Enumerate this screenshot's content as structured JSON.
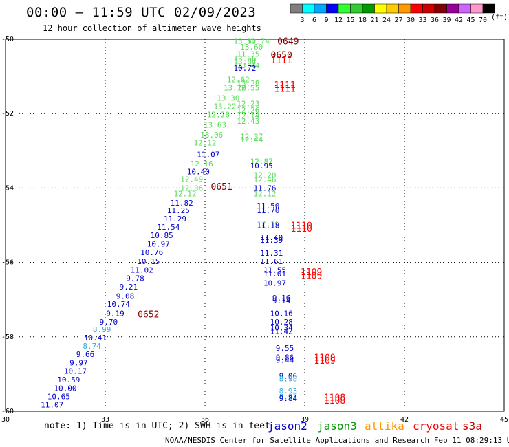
{
  "header": {
    "title": "00:00 – 11:59 UTC 02/09/2023",
    "subtitle": "12 hour collection of altimeter wave heights"
  },
  "colorbar": {
    "labels": [
      "3",
      "6",
      "9",
      "12",
      "15",
      "18",
      "21",
      "24",
      "27",
      "30",
      "33",
      "36",
      "39",
      "42",
      "45",
      "70"
    ],
    "colors": [
      "#7f7f7f",
      "#00ffff",
      "#00a8ff",
      "#0000ff",
      "#33ff33",
      "#33cc33",
      "#009900",
      "#ffff00",
      "#ffcc00",
      "#ff9900",
      "#ff0000",
      "#cc0000",
      "#800000",
      "#990099",
      "#cc66ff",
      "#ff99cc",
      "#000000"
    ],
    "unit": "(ft)"
  },
  "footer": {
    "note": "note: 1) Time is in UTC; 2) SWH is in feet",
    "satellites": [
      {
        "name": "jason2",
        "color": "#0000cc"
      },
      {
        "name": "jason3",
        "color": "#009900"
      },
      {
        "name": "altika",
        "color": "#ff9900"
      },
      {
        "name": "cryosat",
        "color": "#ff0000"
      },
      {
        "name": "s3a",
        "color": "#cc0000"
      }
    ],
    "credit": "NOAA/NESDIS Center for Satellite Applications and Research    Feb 11 08:29:13 UTC 2023"
  },
  "chart_data": {
    "type": "scatter",
    "title": "00:00 – 11:59 UTC 02/09/2023",
    "subtitle": "12 hour collection of altimeter wave heights",
    "xlim": [
      30,
      45
    ],
    "ylim": [
      -60,
      -50
    ],
    "xticks": [
      30,
      33,
      36,
      39,
      42,
      45
    ],
    "yticks": [
      -50,
      -52,
      -54,
      -56,
      -58,
      -60
    ],
    "grid": true,
    "points": [
      {
        "x": 37.2,
        "y": -50.05,
        "label": "13.82",
        "color": "#55dd55"
      },
      {
        "x": 37.6,
        "y": -50.05,
        "label": "10.74",
        "color": "#55dd55"
      },
      {
        "x": 37.4,
        "y": -50.2,
        "label": "13.60",
        "color": "#55dd55"
      },
      {
        "x": 37.3,
        "y": -50.4,
        "label": "11.35",
        "color": "#55dd55"
      },
      {
        "x": 37.2,
        "y": -50.52,
        "label": "13.66",
        "color": "#55dd55"
      },
      {
        "x": 37.2,
        "y": -50.6,
        "label": "13.64",
        "color": "#55dd55"
      },
      {
        "x": 37.3,
        "y": -50.7,
        "label": "13.44",
        "color": "#55dd55"
      },
      {
        "x": 37.2,
        "y": -50.78,
        "label": "10.72",
        "color": "#0000cc"
      },
      {
        "x": 37.0,
        "y": -51.08,
        "label": "12.62",
        "color": "#55dd55"
      },
      {
        "x": 37.3,
        "y": -51.18,
        "label": "13.38",
        "color": "#55dd55"
      },
      {
        "x": 36.9,
        "y": -51.3,
        "label": "13.70",
        "color": "#55dd55"
      },
      {
        "x": 37.3,
        "y": -51.3,
        "label": "12.55",
        "color": "#55dd55"
      },
      {
        "x": 36.7,
        "y": -51.58,
        "label": "13.30",
        "color": "#55dd55"
      },
      {
        "x": 37.3,
        "y": -51.73,
        "label": "12.23",
        "color": "#55dd55"
      },
      {
        "x": 36.6,
        "y": -51.8,
        "label": "13.22",
        "color": "#55dd55"
      },
      {
        "x": 37.3,
        "y": -51.9,
        "label": "12.26",
        "color": "#55dd55"
      },
      {
        "x": 36.4,
        "y": -52.02,
        "label": "12.28",
        "color": "#55dd55"
      },
      {
        "x": 37.3,
        "y": -52.05,
        "label": "12.14",
        "color": "#55dd55"
      },
      {
        "x": 37.3,
        "y": -52.2,
        "label": "12.43",
        "color": "#55dd55"
      },
      {
        "x": 36.3,
        "y": -52.3,
        "label": "13.63",
        "color": "#55dd55"
      },
      {
        "x": 36.2,
        "y": -52.57,
        "label": "13.06",
        "color": "#55dd55"
      },
      {
        "x": 37.4,
        "y": -52.62,
        "label": "12.37",
        "color": "#55dd55"
      },
      {
        "x": 37.4,
        "y": -52.7,
        "label": "12.44",
        "color": "#55dd55"
      },
      {
        "x": 36.0,
        "y": -52.78,
        "label": "12.12",
        "color": "#55dd55"
      },
      {
        "x": 36.1,
        "y": -53.1,
        "label": "11.07",
        "color": "#0000cc"
      },
      {
        "x": 37.7,
        "y": -53.28,
        "label": "12.87",
        "color": "#55dd55"
      },
      {
        "x": 35.9,
        "y": -53.35,
        "label": "12.16",
        "color": "#55dd55"
      },
      {
        "x": 37.7,
        "y": -53.4,
        "label": "10.95",
        "color": "#0000cc"
      },
      {
        "x": 35.8,
        "y": -53.56,
        "label": "10.40",
        "color": "#0000cc"
      },
      {
        "x": 37.8,
        "y": -53.65,
        "label": "12.20",
        "color": "#55dd55"
      },
      {
        "x": 35.6,
        "y": -53.76,
        "label": "12.49",
        "color": "#55dd55"
      },
      {
        "x": 37.8,
        "y": -53.77,
        "label": "12.46",
        "color": "#55dd55"
      },
      {
        "x": 35.6,
        "y": -54.0,
        "label": "12.36",
        "color": "#55dd55"
      },
      {
        "x": 37.8,
        "y": -54.0,
        "label": "11.76",
        "color": "#0000cc"
      },
      {
        "x": 35.4,
        "y": -54.15,
        "label": "12.12",
        "color": "#55dd55"
      },
      {
        "x": 37.8,
        "y": -54.15,
        "label": "12.12",
        "color": "#55dd55"
      },
      {
        "x": 35.3,
        "y": -54.4,
        "label": "11.82",
        "color": "#0000cc"
      },
      {
        "x": 37.9,
        "y": -54.47,
        "label": "11.50",
        "color": "#0000cc"
      },
      {
        "x": 35.2,
        "y": -54.6,
        "label": "11.25",
        "color": "#0000cc"
      },
      {
        "x": 37.9,
        "y": -54.6,
        "label": "11.70",
        "color": "#0000cc"
      },
      {
        "x": 35.1,
        "y": -54.82,
        "label": "11.29",
        "color": "#0000cc"
      },
      {
        "x": 37.9,
        "y": -54.95,
        "label": "12.16",
        "color": "#55dd55"
      },
      {
        "x": 37.9,
        "y": -55.0,
        "label": "11.18",
        "color": "#0000cc"
      },
      {
        "x": 34.9,
        "y": -55.05,
        "label": "11.54",
        "color": "#0000cc"
      },
      {
        "x": 34.7,
        "y": -55.27,
        "label": "10.85",
        "color": "#0000cc"
      },
      {
        "x": 38.0,
        "y": -55.32,
        "label": "11.40",
        "color": "#0000cc"
      },
      {
        "x": 38.0,
        "y": -55.4,
        "label": "11.39",
        "color": "#0000cc"
      },
      {
        "x": 34.6,
        "y": -55.5,
        "label": "10.97",
        "color": "#0000cc"
      },
      {
        "x": 34.4,
        "y": -55.73,
        "label": "10.76",
        "color": "#0000cc"
      },
      {
        "x": 38.0,
        "y": -55.75,
        "label": "11.31",
        "color": "#0000cc"
      },
      {
        "x": 34.3,
        "y": -55.97,
        "label": "10.15",
        "color": "#0000cc"
      },
      {
        "x": 38.0,
        "y": -55.97,
        "label": "11.61",
        "color": "#0000cc"
      },
      {
        "x": 34.1,
        "y": -56.2,
        "label": "11.02",
        "color": "#0000cc"
      },
      {
        "x": 38.1,
        "y": -56.2,
        "label": "11.55",
        "color": "#0000cc"
      },
      {
        "x": 38.1,
        "y": -56.3,
        "label": "11.01",
        "color": "#0000cc"
      },
      {
        "x": 33.9,
        "y": -56.42,
        "label": "9.78",
        "color": "#0000cc"
      },
      {
        "x": 38.1,
        "y": -56.55,
        "label": "10.97",
        "color": "#0000cc"
      },
      {
        "x": 33.7,
        "y": -56.65,
        "label": "9.21",
        "color": "#0000cc"
      },
      {
        "x": 38.3,
        "y": -56.95,
        "label": "9.16",
        "color": "#0000cc"
      },
      {
        "x": 38.3,
        "y": -57.02,
        "label": "9.14",
        "color": "#0000cc"
      },
      {
        "x": 33.6,
        "y": -56.9,
        "label": "9.08",
        "color": "#0000cc"
      },
      {
        "x": 33.4,
        "y": -57.12,
        "label": "10.74",
        "color": "#0000cc"
      },
      {
        "x": 33.3,
        "y": -57.37,
        "label": "9.19",
        "color": "#0000cc"
      },
      {
        "x": 38.3,
        "y": -57.37,
        "label": "10.16",
        "color": "#0000cc"
      },
      {
        "x": 33.1,
        "y": -57.6,
        "label": "9.70",
        "color": "#0000cc"
      },
      {
        "x": 38.3,
        "y": -57.6,
        "label": "10.28",
        "color": "#0000cc"
      },
      {
        "x": 38.3,
        "y": -57.75,
        "label": "10.34",
        "color": "#0000cc"
      },
      {
        "x": 38.3,
        "y": -57.85,
        "label": "11.42",
        "color": "#0000cc"
      },
      {
        "x": 32.9,
        "y": -57.8,
        "label": "8.99",
        "color": "#33aadd"
      },
      {
        "x": 32.7,
        "y": -58.02,
        "label": "10.41",
        "color": "#0000cc"
      },
      {
        "x": 32.6,
        "y": -58.24,
        "label": "8.74",
        "color": "#33aadd"
      },
      {
        "x": 38.4,
        "y": -58.3,
        "label": "9.55",
        "color": "#0000cc"
      },
      {
        "x": 32.4,
        "y": -58.47,
        "label": "9.66",
        "color": "#0000cc"
      },
      {
        "x": 38.4,
        "y": -58.55,
        "label": "9.86",
        "color": "#0000cc"
      },
      {
        "x": 38.4,
        "y": -58.62,
        "label": "9.44",
        "color": "#0000cc"
      },
      {
        "x": 32.2,
        "y": -58.7,
        "label": "9.97",
        "color": "#0000cc"
      },
      {
        "x": 32.1,
        "y": -58.92,
        "label": "10.17",
        "color": "#0000cc"
      },
      {
        "x": 38.5,
        "y": -59.05,
        "label": "9.06",
        "color": "#0000cc"
      },
      {
        "x": 38.5,
        "y": -59.12,
        "label": "8.98",
        "color": "#33aadd"
      },
      {
        "x": 31.9,
        "y": -59.15,
        "label": "10.59",
        "color": "#0000cc"
      },
      {
        "x": 31.8,
        "y": -59.38,
        "label": "10.00",
        "color": "#0000cc"
      },
      {
        "x": 38.5,
        "y": -59.45,
        "label": "8.93",
        "color": "#33aadd"
      },
      {
        "x": 31.6,
        "y": -59.6,
        "label": "10.65",
        "color": "#0000cc"
      },
      {
        "x": 38.5,
        "y": -59.6,
        "label": "8.97",
        "color": "#33aadd"
      },
      {
        "x": 38.5,
        "y": -59.65,
        "label": "9.84",
        "color": "#0000cc"
      },
      {
        "x": 31.4,
        "y": -59.82,
        "label": "11.07",
        "color": "#0000cc"
      }
    ],
    "time_labels": [
      {
        "x": 38.5,
        "y": -50.05,
        "label": "0649",
        "color": "#800000"
      },
      {
        "x": 38.3,
        "y": -50.42,
        "label": "0650",
        "color": "#800000"
      },
      {
        "x": 38.3,
        "y": -50.55,
        "label": "1111",
        "color": "#ff0000"
      },
      {
        "x": 38.4,
        "y": -51.22,
        "label": "1111",
        "color": "#ff0000"
      },
      {
        "x": 38.4,
        "y": -51.32,
        "label": "1111",
        "color": "#ff0000"
      },
      {
        "x": 36.5,
        "y": -53.96,
        "label": "0651",
        "color": "#800000"
      },
      {
        "x": 38.9,
        "y": -55.0,
        "label": "1110",
        "color": "#ff0000"
      },
      {
        "x": 38.9,
        "y": -55.08,
        "label": "1110",
        "color": "#ff0000"
      },
      {
        "x": 39.2,
        "y": -56.25,
        "label": "1109",
        "color": "#ff0000"
      },
      {
        "x": 39.2,
        "y": -56.35,
        "label": "1109",
        "color": "#ff0000"
      },
      {
        "x": 34.3,
        "y": -57.38,
        "label": "0652",
        "color": "#800000"
      },
      {
        "x": 39.6,
        "y": -58.55,
        "label": "1109",
        "color": "#ff0000"
      },
      {
        "x": 39.6,
        "y": -58.63,
        "label": "1109",
        "color": "#ff0000"
      },
      {
        "x": 39.9,
        "y": -59.62,
        "label": "1108",
        "color": "#ff0000"
      },
      {
        "x": 39.9,
        "y": -59.7,
        "label": "1108",
        "color": "#ff0000"
      }
    ]
  }
}
